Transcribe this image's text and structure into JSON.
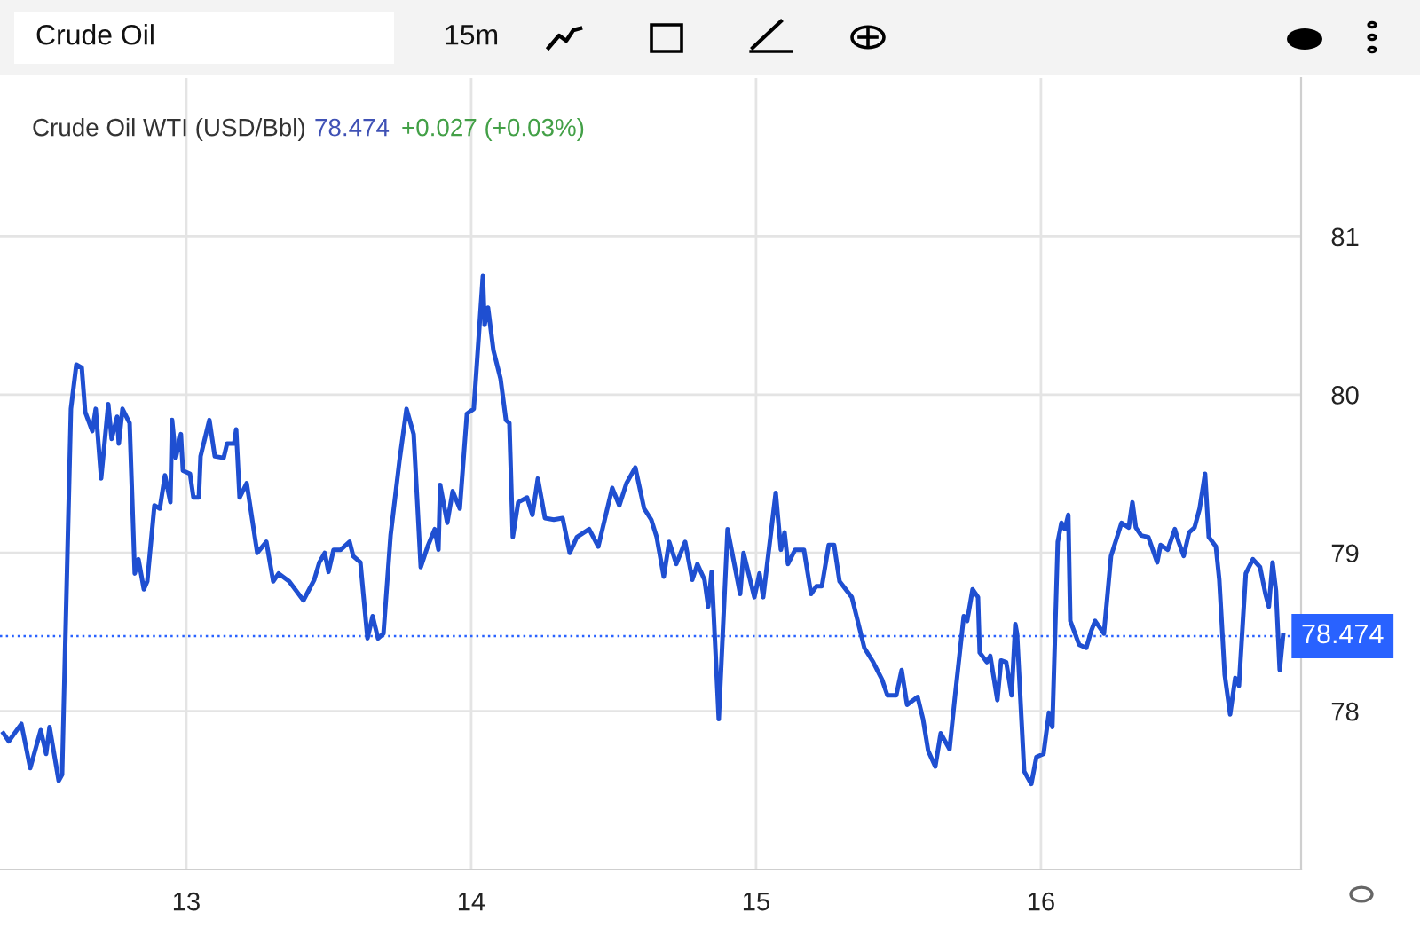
{
  "chart_data": {
    "type": "line",
    "title": "Crude Oil WTI (USD/Bbl)",
    "annotations": [
      "Crude Oil",
      "15m",
      "78.474",
      "+0.027 (+0.03%)"
    ],
    "x": [
      12.358,
      12.377,
      12.421,
      12.452,
      12.489,
      12.508,
      12.52,
      12.552,
      12.564,
      12.595,
      12.614,
      12.633,
      12.645,
      12.67,
      12.682,
      12.701,
      12.726,
      12.738,
      12.757,
      12.763,
      12.776,
      12.801,
      12.819,
      12.832,
      12.851,
      12.863,
      12.888,
      12.907,
      12.925,
      12.944,
      12.95,
      12.963,
      12.981,
      12.988,
      13.013,
      13.025,
      13.044,
      13.05,
      13.081,
      13.1,
      13.131,
      13.143,
      13.168,
      13.175,
      13.187,
      13.212,
      13.249,
      13.281,
      13.305,
      13.324,
      13.361,
      13.411,
      13.449,
      13.467,
      13.486,
      13.499,
      13.517,
      13.542,
      13.573,
      13.586,
      13.611,
      13.636,
      13.654,
      13.673,
      13.692,
      13.717,
      13.748,
      13.773,
      13.798,
      13.823,
      13.847,
      13.872,
      13.885,
      13.891,
      13.916,
      13.935,
      13.96,
      13.985,
      14.009,
      14.041,
      14.047,
      14.059,
      14.078,
      14.103,
      14.122,
      14.134,
      14.146,
      14.165,
      14.196,
      14.215,
      14.234,
      14.259,
      14.29,
      14.321,
      14.346,
      14.371,
      14.414,
      14.446,
      14.495,
      14.52,
      14.545,
      14.576,
      14.607,
      14.632,
      14.651,
      14.676,
      14.695,
      14.72,
      14.751,
      14.776,
      14.794,
      14.819,
      14.832,
      14.844,
      14.869,
      14.9,
      14.944,
      14.956,
      14.994,
      15.012,
      15.025,
      15.069,
      15.087,
      15.1,
      15.112,
      15.137,
      15.168,
      15.193,
      15.212,
      15.231,
      15.255,
      15.274,
      15.293,
      15.336,
      15.38,
      15.411,
      15.442,
      15.461,
      15.492,
      15.511,
      15.53,
      15.567,
      15.586,
      15.604,
      15.629,
      15.648,
      15.679,
      15.698,
      15.729,
      15.741,
      15.76,
      15.779,
      15.785,
      15.81,
      15.822,
      15.847,
      15.86,
      15.878,
      15.897,
      15.91,
      15.916,
      15.941,
      15.966,
      15.984,
      16.009,
      16.028,
      16.04,
      16.059,
      16.072,
      16.084,
      16.096,
      16.103,
      16.134,
      16.159,
      16.177,
      16.19,
      16.221,
      16.246,
      16.283,
      16.308,
      16.321,
      16.333,
      16.352,
      16.377,
      16.408,
      16.42,
      16.445,
      16.47,
      16.483,
      16.501,
      16.52,
      16.539,
      16.557,
      16.576,
      16.589,
      16.614,
      16.626,
      16.645,
      16.664,
      16.682,
      16.695,
      16.719,
      16.744,
      16.769,
      16.788,
      16.8,
      16.813,
      16.825,
      16.838,
      16.85
    ],
    "series": [
      {
        "color": "#1f4fd1",
        "values": [
          77.86,
          77.81,
          77.92,
          77.64,
          77.88,
          77.73,
          77.9,
          77.56,
          77.6,
          79.91,
          80.19,
          80.17,
          79.89,
          79.77,
          79.91,
          79.47,
          79.94,
          79.72,
          79.86,
          79.69,
          79.91,
          79.82,
          78.87,
          78.96,
          78.77,
          78.82,
          79.3,
          79.28,
          79.49,
          79.32,
          79.84,
          79.6,
          79.75,
          79.52,
          79.5,
          79.35,
          79.35,
          79.61,
          79.84,
          79.61,
          79.6,
          79.69,
          79.69,
          79.78,
          79.35,
          79.44,
          79.0,
          79.07,
          78.82,
          78.87,
          78.82,
          78.7,
          78.83,
          78.94,
          79.0,
          78.88,
          79.02,
          79.02,
          79.07,
          78.98,
          78.94,
          78.46,
          78.6,
          78.46,
          78.49,
          79.11,
          79.58,
          79.91,
          79.75,
          78.91,
          79.04,
          79.15,
          79.02,
          79.43,
          79.19,
          79.39,
          79.28,
          79.88,
          79.91,
          80.75,
          80.44,
          80.55,
          80.28,
          80.1,
          79.84,
          79.82,
          79.1,
          79.32,
          79.35,
          79.24,
          79.47,
          79.22,
          79.21,
          79.22,
          79.0,
          79.1,
          79.15,
          79.04,
          79.41,
          79.3,
          79.44,
          79.54,
          79.28,
          79.21,
          79.1,
          78.85,
          79.07,
          78.93,
          79.07,
          78.83,
          78.93,
          78.83,
          78.66,
          78.88,
          77.95,
          79.15,
          78.74,
          79.0,
          78.72,
          78.87,
          78.72,
          79.38,
          79.02,
          79.13,
          78.93,
          79.02,
          79.02,
          78.74,
          78.79,
          78.79,
          79.05,
          79.05,
          78.82,
          78.72,
          78.4,
          78.31,
          78.2,
          78.1,
          78.1,
          78.26,
          78.04,
          78.09,
          77.95,
          77.75,
          77.65,
          77.86,
          77.76,
          78.09,
          78.6,
          78.57,
          78.77,
          78.72,
          78.37,
          78.31,
          78.35,
          78.07,
          78.32,
          78.31,
          78.1,
          78.55,
          78.49,
          77.62,
          77.54,
          77.71,
          77.73,
          77.99,
          77.9,
          79.07,
          79.19,
          79.15,
          79.24,
          78.57,
          78.42,
          78.4,
          78.51,
          78.57,
          78.49,
          78.98,
          79.19,
          79.16,
          79.32,
          79.16,
          79.11,
          79.1,
          78.94,
          79.05,
          79.02,
          79.15,
          79.07,
          78.98,
          79.13,
          79.16,
          79.28,
          79.5,
          79.1,
          79.04,
          78.83,
          78.23,
          77.98,
          78.21,
          78.16,
          78.87,
          78.96,
          78.91,
          78.74,
          78.66,
          78.94,
          78.76,
          78.26,
          78.48
        ]
      }
    ],
    "xlim": [
      12.346,
      16.913
    ],
    "xticks": [
      13,
      14,
      15,
      16
    ],
    "ylim": [
      77.0,
      82.0
    ],
    "yticks": [
      78,
      79,
      80,
      81
    ],
    "ref_lines": [
      {
        "axis": "y",
        "value": 78.474,
        "label": "78.474",
        "color": "#2962ff",
        "line_style": "dotted"
      }
    ],
    "grid": true,
    "marker": "none",
    "line_style": "solid"
  }
}
